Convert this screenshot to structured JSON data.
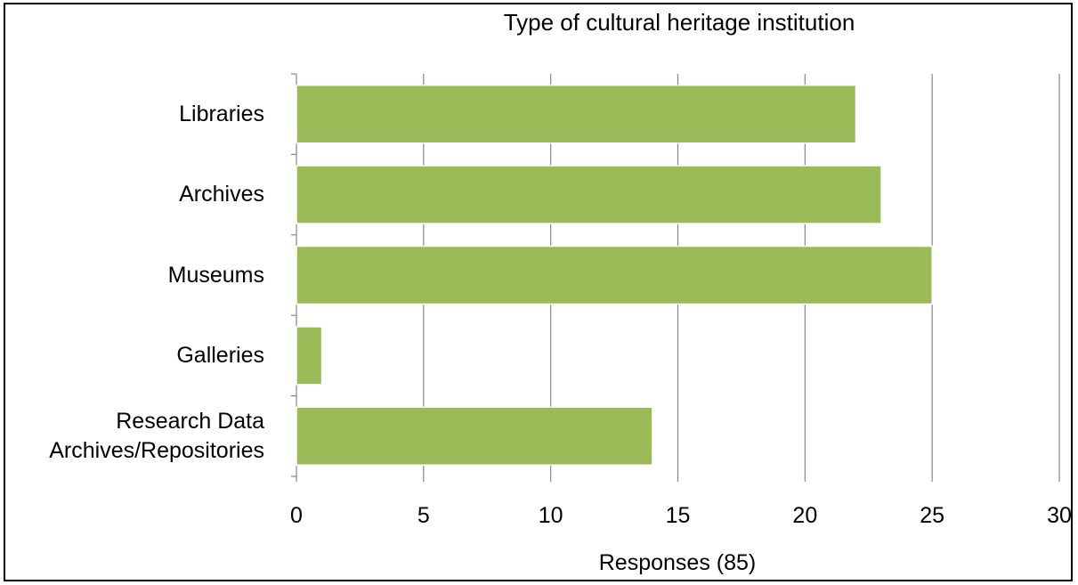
{
  "chart_data": {
    "type": "bar",
    "orientation": "horizontal",
    "title": "Type of cultural heritage institution",
    "xlabel": "Responses (85)",
    "ylabel": "",
    "categories": [
      "Libraries",
      "Archives",
      "Museums",
      "Galleries",
      "Research Data Archives/Repositories"
    ],
    "category_lines": [
      [
        "Libraries"
      ],
      [
        "Archives"
      ],
      [
        "Museums"
      ],
      [
        "Galleries"
      ],
      [
        "Research Data",
        "Archives/Repositories"
      ]
    ],
    "values": [
      22,
      23,
      25,
      1,
      14
    ],
    "xlim": [
      0,
      30
    ],
    "xticks": [
      0,
      5,
      10,
      15,
      20,
      25,
      30
    ],
    "grid": true,
    "legend": "none",
    "bar_color": "#9BBB59"
  }
}
